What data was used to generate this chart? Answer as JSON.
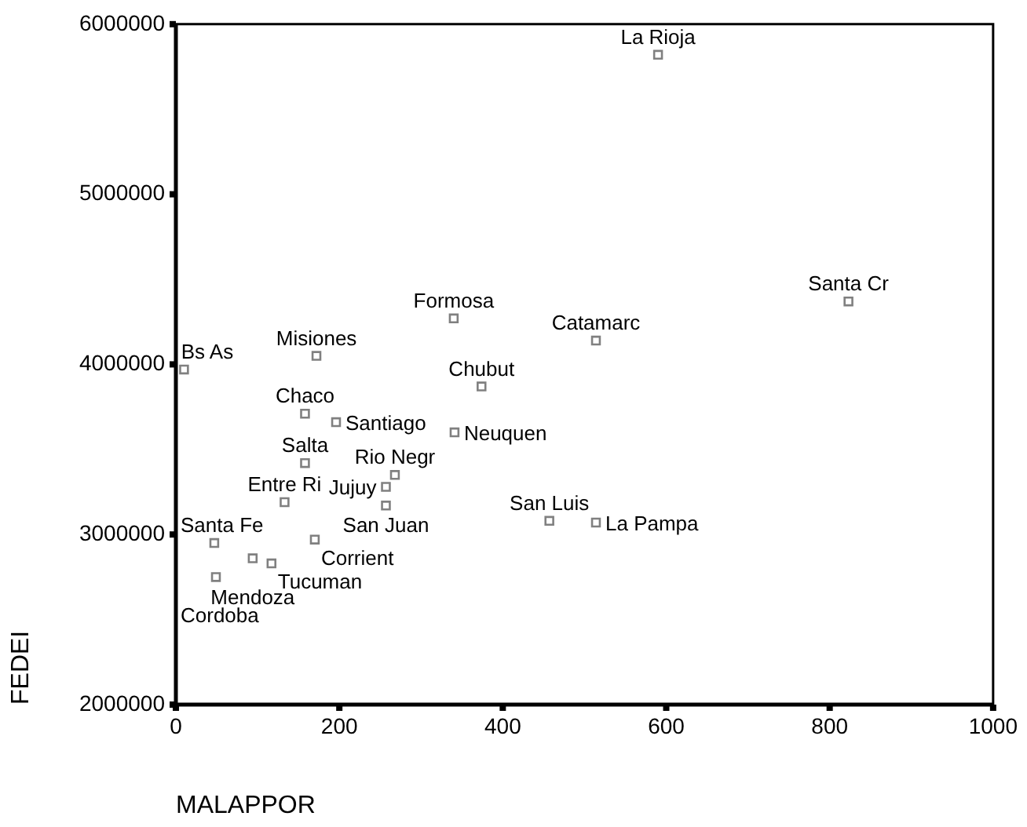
{
  "chart_data": {
    "type": "scatter",
    "xlabel": "MALAPPOR",
    "ylabel": "FEDEI",
    "xlim": [
      0,
      1000
    ],
    "xticks": [
      0,
      200,
      400,
      600,
      800,
      1000
    ],
    "ylim": [
      2000000,
      6000000
    ],
    "yticks": [
      2000000,
      3000000,
      4000000,
      5000000,
      6000000
    ],
    "grid": false,
    "legend": false,
    "marker": "square",
    "series": [
      {
        "color": "#808080",
        "x": [
          10,
          172,
          158,
          196,
          158,
          133,
          268,
          257,
          257,
          47,
          170,
          94,
          117,
          49,
          340,
          514,
          374,
          341,
          457,
          514,
          823,
          590
        ],
        "values": [
          3970000,
          4050000,
          3710000,
          3660000,
          3420000,
          3190000,
          3350000,
          3280000,
          3170000,
          2950000,
          2970000,
          2860000,
          2830000,
          2750000,
          4270000,
          4140000,
          3870000,
          3600000,
          3080000,
          3070000,
          4370000,
          5820000
        ]
      }
    ],
    "annotations": [
      {
        "text": "Bs As",
        "x": 10,
        "y": 3970000
      },
      {
        "text": "Misiones",
        "x": 172,
        "y": 4050000
      },
      {
        "text": "Chaco",
        "x": 158,
        "y": 3710000
      },
      {
        "text": "Santiago",
        "x": 196,
        "y": 3660000
      },
      {
        "text": "Salta",
        "x": 158,
        "y": 3420000
      },
      {
        "text": "Entre Ri",
        "x": 133,
        "y": 3190000
      },
      {
        "text": "Rio Negr",
        "x": 268,
        "y": 3350000
      },
      {
        "text": "Jujuy",
        "x": 257,
        "y": 3280000
      },
      {
        "text": "San Juan",
        "x": 257,
        "y": 3170000
      },
      {
        "text": "Santa Fe",
        "x": 47,
        "y": 2950000
      },
      {
        "text": "Corrient",
        "x": 170,
        "y": 2970000
      },
      {
        "text": "Mendoza",
        "x": 94,
        "y": 2860000
      },
      {
        "text": "Tucuman",
        "x": 117,
        "y": 2830000
      },
      {
        "text": "Cordoba",
        "x": 49,
        "y": 2750000
      },
      {
        "text": "Formosa",
        "x": 340,
        "y": 4270000
      },
      {
        "text": "Catamarc",
        "x": 514,
        "y": 4140000
      },
      {
        "text": "Chubut",
        "x": 374,
        "y": 3870000
      },
      {
        "text": "Neuquen",
        "x": 341,
        "y": 3600000
      },
      {
        "text": "San Luis",
        "x": 457,
        "y": 3080000
      },
      {
        "text": "La Pampa",
        "x": 514,
        "y": 3070000
      },
      {
        "text": "Santa Cr",
        "x": 823,
        "y": 4370000
      },
      {
        "text": "La Rioja",
        "x": 590,
        "y": 5820000
      }
    ]
  }
}
